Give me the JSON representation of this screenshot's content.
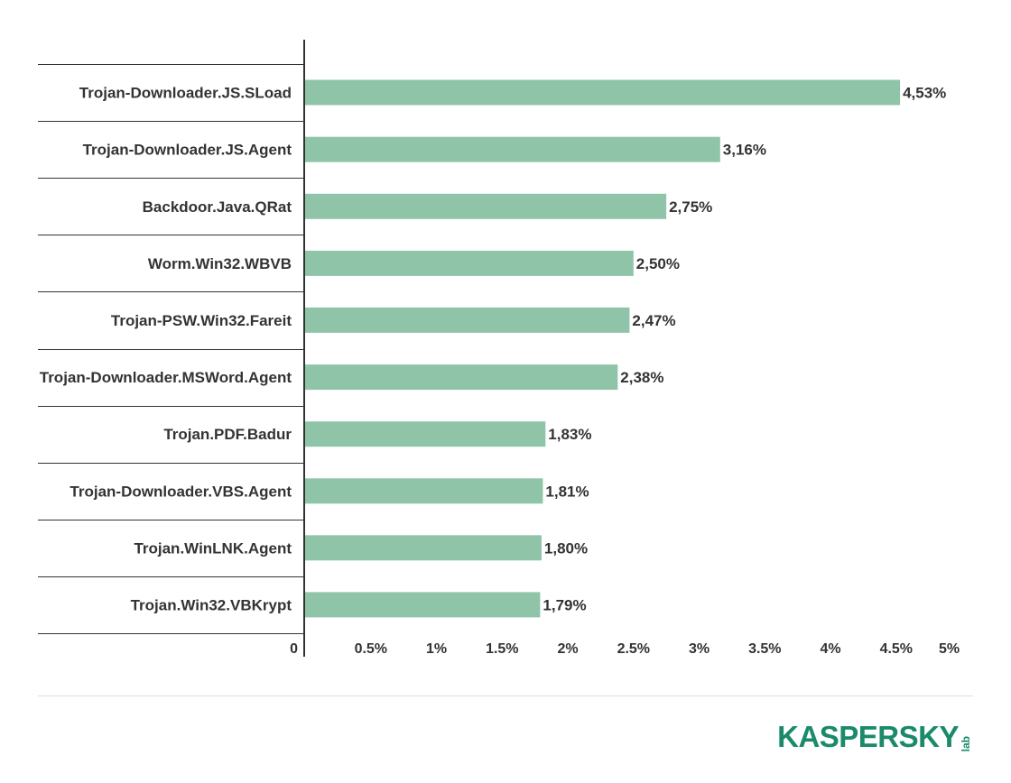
{
  "chart_data": {
    "type": "bar",
    "orientation": "horizontal",
    "categories": [
      "Trojan-Downloader.JS.SLoad",
      "Trojan-Downloader.JS.Agent",
      "Backdoor.Java.QRat",
      "Worm.Win32.WBVB",
      "Trojan-PSW.Win32.Fareit",
      "Trojan-Downloader.MSWord.Agent",
      "Trojan.PDF.Badur",
      "Trojan-Downloader.VBS.Agent",
      "Trojan.WinLNK.Agent",
      "Trojan.Win32.VBKrypt"
    ],
    "values": [
      4.53,
      3.16,
      2.75,
      2.5,
      2.47,
      2.38,
      1.83,
      1.81,
      1.8,
      1.79
    ],
    "value_labels": [
      "4,53%",
      "3,16%",
      "2,75%",
      "2,50%",
      "2,47%",
      "2,38%",
      "1,83%",
      "1,81%",
      "1,80%",
      "1,79%"
    ],
    "x_ticks": [
      {
        "value": 0,
        "label": "0"
      },
      {
        "value": 0.5,
        "label": "0.5%"
      },
      {
        "value": 1,
        "label": "1%"
      },
      {
        "value": 1.5,
        "label": "1.5%"
      },
      {
        "value": 2,
        "label": "2%"
      },
      {
        "value": 2.5,
        "label": "2.5%"
      },
      {
        "value": 3,
        "label": "3%"
      },
      {
        "value": 3.5,
        "label": "3.5%"
      },
      {
        "value": 4,
        "label": "4%"
      },
      {
        "value": 4.5,
        "label": "4.5%"
      },
      {
        "value": 5,
        "label": "5%"
      }
    ],
    "xlim": [
      0,
      5
    ],
    "grid": false,
    "bar_color": "#8fc4a8",
    "title": "",
    "xlabel": "",
    "ylabel": ""
  },
  "logo": {
    "word": "KASPERSKY",
    "suffix": "lab",
    "color": "#1a8a6a"
  }
}
